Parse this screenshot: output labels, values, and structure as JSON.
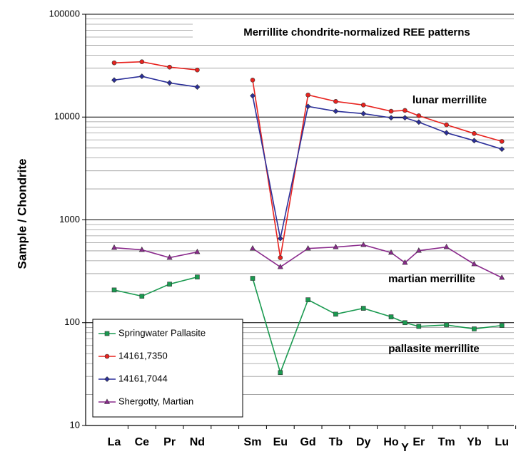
{
  "chart_data": {
    "type": "line",
    "title": "Merrillite chondrite-normalized REE patterns",
    "y_label": "Sample / Chondrite",
    "annotations": [
      "lunar merrillite",
      "martian merrillite",
      "pallasite merrillite"
    ],
    "categories": [
      "La",
      "Ce",
      "Pr",
      "Nd",
      null,
      "Sm",
      "Eu",
      "Gd",
      "Tb",
      "Dy",
      "Ho",
      "Y",
      "Er",
      "Tm",
      "Yb",
      "Lu"
    ],
    "log_scale": true,
    "ylim": [
      10,
      100000
    ],
    "yticks": [
      10,
      100,
      1000,
      10000,
      100000
    ],
    "grid": true,
    "legend": "lower left",
    "series": [
      {
        "name": "Springwater Pallasite",
        "color": "#1a9a50",
        "marker": "square",
        "values": [
          208,
          181,
          237,
          278,
          null,
          270,
          32.7,
          167,
          121,
          138,
          114,
          100,
          92,
          95,
          87,
          94
        ]
      },
      {
        "name": "14161,7350",
        "color": "#e8231f",
        "marker": "circle",
        "values": [
          33700,
          34500,
          30600,
          28700,
          null,
          22900,
          429,
          16400,
          14200,
          13100,
          11400,
          11600,
          10300,
          8400,
          6920,
          5800
        ]
      },
      {
        "name": "14161,7044",
        "color": "#2b2f9a",
        "marker": "diamond",
        "values": [
          22900,
          24900,
          21500,
          19600,
          null,
          16100,
          659,
          12700,
          11400,
          10800,
          9840,
          9840,
          8930,
          7030,
          5900,
          4880
        ]
      },
      {
        "name": "Shergotty, Martian",
        "color": "#8a2a8c",
        "marker": "triangle",
        "values": [
          536,
          511,
          429,
          487,
          null,
          527,
          348,
          527,
          544,
          571,
          480,
          383,
          502,
          544,
          371,
          274
        ]
      }
    ]
  }
}
